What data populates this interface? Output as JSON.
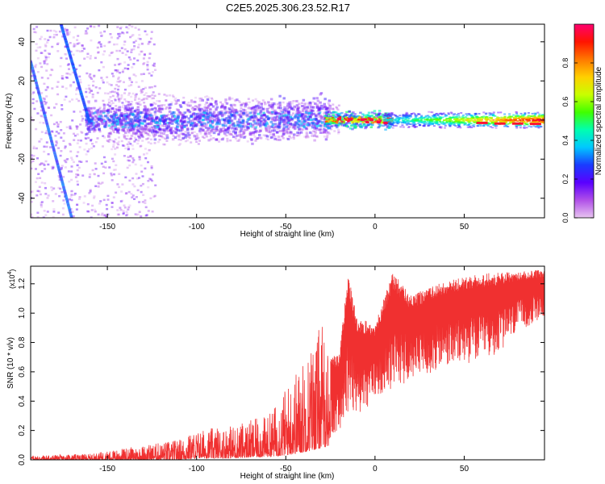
{
  "title": "C2E5.2025.306.23.52.R17",
  "chart_data": [
    {
      "type": "heatmap",
      "title": "C2E5.2025.306.23.52.R17",
      "xlabel": "Height of straight line (km)",
      "ylabel": "Frequency (Hz)",
      "xlim": [
        -193,
        95
      ],
      "ylim": [
        -50,
        49
      ],
      "xticks": [
        -150,
        -100,
        -50,
        0,
        50
      ],
      "yticks": [
        -40,
        -20,
        0,
        20,
        40
      ],
      "colorbar": {
        "label": "Normalized spectral amplitude",
        "range": [
          0.0,
          1.0
        ],
        "ticks": [
          0.0,
          0.2,
          0.4,
          0.6,
          0.8
        ],
        "colors": [
          "#e8c4f0",
          "#b050e8",
          "#5a00ff",
          "#1a3cff",
          "#00c8ff",
          "#00ffb0",
          "#40ff00",
          "#c8ff00",
          "#ffd000",
          "#ff7800",
          "#ff1400",
          "#ff0070"
        ]
      },
      "features": [
        {
          "name": "main spectral line",
          "x_range": [
            -160,
            95
          ],
          "center_freq": 0,
          "note": "scattered low-height signal, narrowing into a strong line above -25 km"
        },
        {
          "name": "aliased streak 1",
          "x_start": -193,
          "y_start": 30,
          "x_end": -170,
          "y_end": -50
        },
        {
          "name": "aliased streak 2",
          "x_start": -176,
          "y_start": 49,
          "x_end": -160,
          "y_end": -1
        }
      ]
    },
    {
      "type": "line",
      "xlabel": "Height of straight line (km)",
      "ylabel": "SNR (10 * v/v)",
      "y_multiplier": "(x10",
      "y_multiplier_exp": "4",
      "y_multiplier_close": ")",
      "xlim": [
        -193,
        95
      ],
      "ylim": [
        0,
        1.32
      ],
      "xticks": [
        -150,
        -100,
        -50,
        0,
        50
      ],
      "yticks": [
        0.0,
        0.2,
        0.4,
        0.6,
        0.8,
        1.0,
        1.2
      ],
      "ytick_labels": [
        "0.0",
        "0.2",
        "0.4",
        "0.6",
        "0.8",
        "1.0",
        "1.2"
      ],
      "series": [
        {
          "name": "SNR",
          "color": "#f03030",
          "envelope_x": [
            -193,
            -160,
            -140,
            -130,
            -110,
            -100,
            -80,
            -60,
            -50,
            -40,
            -30,
            -25,
            -20,
            -15,
            -10,
            -5,
            0,
            10,
            20,
            30,
            40,
            50,
            60,
            70,
            80,
            95
          ],
          "envelope_high": [
            0.03,
            0.04,
            0.08,
            0.1,
            0.14,
            0.2,
            0.24,
            0.3,
            0.5,
            0.7,
            0.95,
            0.7,
            0.72,
            1.28,
            0.95,
            0.95,
            0.92,
            1.28,
            1.12,
            1.18,
            1.22,
            1.25,
            1.27,
            1.28,
            1.28,
            1.3
          ],
          "envelope_low": [
            0.0,
            0.0,
            0.0,
            0.0,
            0.0,
            0.01,
            0.01,
            0.02,
            0.03,
            0.05,
            0.08,
            0.1,
            0.18,
            0.22,
            0.28,
            0.3,
            0.4,
            0.45,
            0.5,
            0.55,
            0.6,
            0.62,
            0.65,
            0.7,
            0.85,
            0.95
          ]
        }
      ]
    }
  ]
}
